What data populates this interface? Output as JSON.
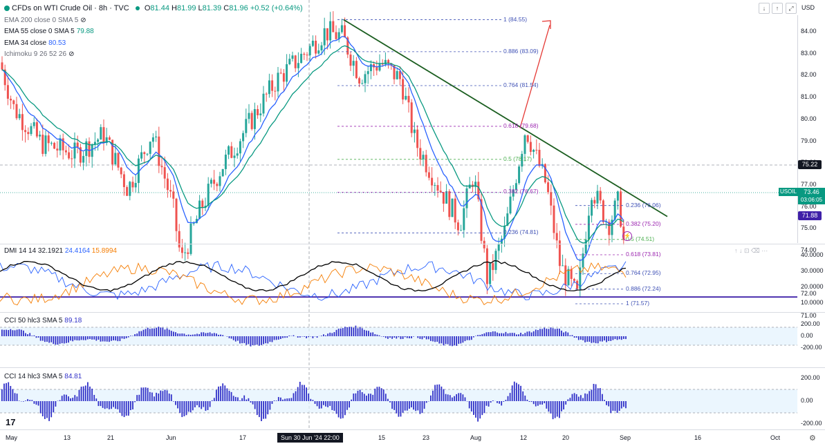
{
  "header": {
    "title": "CFDs on WTI Crude Oil · 8h · TVC",
    "ohlc": [
      {
        "k": "O",
        "v": "81.44"
      },
      {
        "k": "H",
        "v": "81.99"
      },
      {
        "k": "L",
        "v": "81.39"
      },
      {
        "k": "C",
        "v": "81.96"
      }
    ],
    "change": "+0.52 (+0.64%)",
    "currency": "USD"
  },
  "legend": [
    {
      "label": "EMA 200 close 0 SMA 5",
      "value": ""
    },
    {
      "label": "EMA 55 close 0 SMA 5",
      "value": "79.88"
    },
    {
      "label": "EMA 34 close",
      "value": "80.53"
    },
    {
      "label": "Ichimoku 9 26 52 26",
      "value": ""
    }
  ],
  "price_axis": {
    "ticks": [
      "84.00",
      "83.00",
      "82.00",
      "81.00",
      "80.00",
      "79.00",
      "78.00",
      "77.00",
      "76.00",
      "75.00",
      "74.00",
      "72.00",
      "71.00"
    ],
    "badges": {
      "level_line": "75.22",
      "symbol": "USOIL",
      "last_price": "73.46",
      "countdown": "03:06:05",
      "support": "71.88"
    }
  },
  "fib_upper": [
    {
      "label": "1 (84.55)",
      "price": 84.55
    },
    {
      "label": "0.886 (83.09)",
      "price": 83.09
    },
    {
      "label": "0.764 (81.54)",
      "price": 81.54
    },
    {
      "label": "0.618 (79.68)",
      "price": 79.68
    },
    {
      "label": "0.5 (78.17)",
      "price": 78.17
    },
    {
      "label": "0.382 (76.67)",
      "price": 76.67
    },
    {
      "label": "0.236 (74.81)",
      "price": 74.81
    }
  ],
  "fib_lower": [
    {
      "label": "0.236 (76.06)",
      "price": 76.06
    },
    {
      "label": "0.382 (75.20)",
      "price": 75.2
    },
    {
      "label": "0.5 (74.51)",
      "price": 74.51
    },
    {
      "label": "0.618 (73.81)",
      "price": 73.81
    },
    {
      "label": "0.764 (72.95)",
      "price": 72.95
    },
    {
      "label": "0.886 (72.24)",
      "price": 72.24
    },
    {
      "label": "1 (71.57)",
      "price": 71.57
    }
  ],
  "dmi": {
    "label": "DMI 14 14",
    "values": [
      "32.1921",
      "24.4164",
      "15.8994"
    ],
    "ticks": [
      "40.0000",
      "30.0000",
      "20.0000",
      "10.0000"
    ]
  },
  "cci50": {
    "label": "CCI 50 hlc3 SMA 5",
    "value": "89.18",
    "ticks": [
      "200.00",
      "0.00",
      "-200.00"
    ]
  },
  "cci14": {
    "label": "CCI 14 hlc3 SMA 5",
    "value": "84.81",
    "ticks": [
      "200.00",
      "0.00",
      "-200.00"
    ]
  },
  "time_axis": [
    "May",
    "13",
    "21",
    "Jun",
    "17",
    "15",
    "23",
    "Aug",
    "12",
    "20",
    "Sep",
    "16",
    "Oct"
  ],
  "cursor_time": "Sun 30 Jun '24  22:00",
  "colors": {
    "up": "#26a69a",
    "down": "#ef5350",
    "ema_fast": "#2962ff",
    "ema_slow": "#089981",
    "trend": "#1b5e20",
    "support": "#3f20a8",
    "plus_di": "#2962ff",
    "minus_di": "#f57c00",
    "adx": "#000000",
    "cci": "#3030c8"
  },
  "icons": [
    "chevron-down-icon",
    "chevron-up-icon",
    "fullscreen-icon",
    "settings-icon",
    "logo-icon"
  ]
}
